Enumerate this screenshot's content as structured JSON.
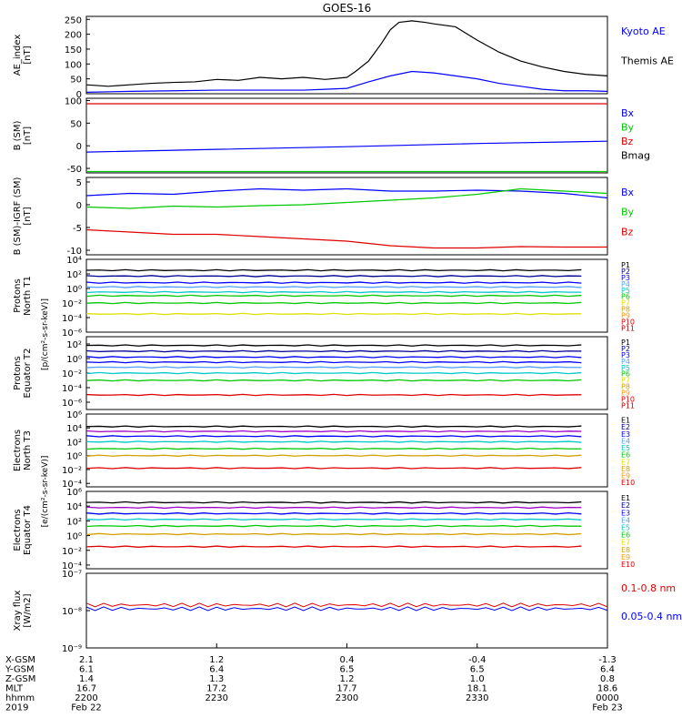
{
  "title": "GOES-16",
  "colors": {
    "black": "#000000",
    "blue": "#0000ff",
    "green": "#00c800",
    "red": "#e00000",
    "cyan": "#00c8c8",
    "orange": "#ff9600",
    "yellow": "#e0e000",
    "navy": "#000096",
    "purple": "#a000c8",
    "lightblue": "#50a0ff",
    "gold": "#d0a000",
    "maroon": "#b00000"
  },
  "time_axis": {
    "start": "2200",
    "end": "0000",
    "ticks": [
      "2200",
      "2230",
      "2300",
      "2330",
      "0000"
    ]
  },
  "chart_data": [
    {
      "type": "line",
      "panel": "ae_index",
      "ylabel": [
        "AE_index",
        "[nT]"
      ],
      "yticks": [
        "0",
        "50",
        "100",
        "150",
        "200",
        "250"
      ],
      "ylim": [
        0,
        260
      ],
      "legend": [
        "Kyoto AE",
        "Themis AE"
      ],
      "series": [
        {
          "name": "Themis AE",
          "color": "#000000",
          "x": [
            0,
            5,
            10,
            15,
            20,
            25,
            30,
            35,
            40,
            45,
            50,
            55,
            60,
            62,
            65,
            68,
            70,
            72,
            75,
            78,
            80,
            85,
            90,
            95,
            100,
            105,
            110,
            115,
            120
          ],
          "y": [
            30,
            25,
            30,
            35,
            38,
            40,
            48,
            45,
            55,
            50,
            55,
            48,
            55,
            75,
            110,
            170,
            215,
            240,
            245,
            240,
            235,
            225,
            180,
            140,
            110,
            90,
            75,
            65,
            60
          ]
        },
        {
          "name": "Kyoto AE",
          "color": "#0000ff",
          "x": [
            0,
            10,
            20,
            30,
            40,
            50,
            55,
            60,
            65,
            70,
            75,
            80,
            85,
            90,
            95,
            100,
            105,
            110,
            115,
            120
          ],
          "y": [
            5,
            8,
            10,
            12,
            12,
            12,
            15,
            18,
            40,
            60,
            75,
            70,
            60,
            50,
            35,
            25,
            15,
            10,
            10,
            8
          ]
        }
      ]
    },
    {
      "type": "line",
      "panel": "b_sm",
      "ylabel": [
        "B (SM)",
        "[nT]"
      ],
      "yticks": [
        "-50",
        "0",
        "50",
        "100"
      ],
      "ylim": [
        -60,
        105
      ],
      "legend": [
        "Bx",
        "By",
        "Bz",
        "Bmag"
      ],
      "series": [
        {
          "name": "Bz",
          "color": "#e00000",
          "x": [
            0,
            120
          ],
          "y": [
            93,
            93
          ]
        },
        {
          "name": "Bx",
          "color": "#0000ff",
          "x": [
            0,
            30,
            60,
            90,
            120
          ],
          "y": [
            -14,
            -8,
            -2,
            5,
            10
          ]
        },
        {
          "name": "By",
          "color": "#00c800",
          "x": [
            0,
            120
          ],
          "y": [
            -57,
            -57
          ]
        }
      ]
    },
    {
      "type": "line",
      "panel": "b_minus_igrf",
      "ylabel": [
        "B (SM)-IGRF (SM)",
        "[nT]"
      ],
      "yticks": [
        "-10",
        "-5",
        "0",
        "5"
      ],
      "ylim": [
        -11,
        6
      ],
      "legend": [
        "Bx",
        "By",
        "Bz"
      ],
      "series": [
        {
          "name": "Bx",
          "color": "#0000ff",
          "x": [
            0,
            10,
            20,
            30,
            40,
            50,
            60,
            70,
            80,
            90,
            100,
            110,
            120
          ],
          "y": [
            2.0,
            2.5,
            2.3,
            3.0,
            3.5,
            3.2,
            3.5,
            3.0,
            3.0,
            3.2,
            3.0,
            2.5,
            1.5
          ]
        },
        {
          "name": "By",
          "color": "#00c800",
          "x": [
            0,
            10,
            20,
            30,
            40,
            50,
            60,
            70,
            80,
            90,
            100,
            110,
            120
          ],
          "y": [
            -0.5,
            -0.8,
            -0.3,
            -0.5,
            -0.2,
            0.0,
            0.5,
            1.0,
            1.5,
            2.3,
            3.5,
            3.0,
            2.5
          ]
        },
        {
          "name": "Bz",
          "color": "#e00000",
          "x": [
            0,
            10,
            20,
            30,
            40,
            50,
            60,
            70,
            80,
            90,
            100,
            110,
            120
          ],
          "y": [
            -5.5,
            -6.0,
            -6.5,
            -6.5,
            -7.0,
            -7.5,
            -8.0,
            -9.0,
            -9.5,
            -9.5,
            -9.2,
            -9.3,
            -9.3
          ]
        }
      ]
    },
    {
      "type": "line",
      "panel": "protons_t1",
      "ylabel": [
        "Protons",
        "North T1"
      ],
      "yticks": [
        "10⁴",
        "10²",
        "10⁰",
        "10⁻²",
        "10⁻⁴",
        "10⁻⁶"
      ],
      "ylim": [
        -6,
        4
      ],
      "log": true,
      "legend": [
        "P1",
        "P2",
        "P3",
        "P4",
        "P5",
        "P6",
        "P7",
        "P8",
        "P9",
        "P10",
        "P11"
      ],
      "levels": [
        2.5,
        1.7,
        0.8,
        0.2,
        -0.5,
        -1.0,
        -2.0,
        -3.5
      ],
      "level_colors": [
        "#000000",
        "#000096",
        "#0000ff",
        "#50a0ff",
        "#00c8c8",
        "#00c800",
        "#00c800",
        "#e0e000"
      ]
    },
    {
      "type": "line",
      "panel": "protons_t2",
      "ylabel": [
        "Protons",
        "Equator T2"
      ],
      "yticks": [
        "10²",
        "10⁰",
        "10⁻²",
        "10⁻⁴",
        "10⁻⁶"
      ],
      "ylim": [
        -7,
        3
      ],
      "log": true,
      "legend": [
        "P1",
        "P2",
        "P3",
        "P4",
        "P5",
        "P6",
        "P7",
        "P8",
        "P9",
        "P10",
        "P11"
      ],
      "levels": [
        1.8,
        1.0,
        0.2,
        -0.5,
        -1.2,
        -2.0,
        -3.0,
        -5.0
      ],
      "level_colors": [
        "#000000",
        "#000096",
        "#0000ff",
        "#0000ff",
        "#50a0ff",
        "#00c8c8",
        "#00c800",
        "#e00000"
      ]
    },
    {
      "type": "line",
      "panel": "electrons_t3",
      "ylabel": [
        "Electrons",
        "North T3"
      ],
      "yticks": [
        "10⁶",
        "10⁴",
        "10²",
        "10⁰",
        "10⁻²",
        "10⁻⁴"
      ],
      "ylim": [
        -4.5,
        6
      ],
      "log": true,
      "legend": [
        "E1",
        "E2",
        "E3",
        "E4",
        "E5",
        "E6",
        "E7",
        "E8",
        "E9",
        "E10"
      ],
      "levels": [
        4.2,
        3.5,
        2.8,
        2.0,
        1.0,
        0.0,
        -1.8
      ],
      "level_colors": [
        "#000000",
        "#a000c8",
        "#0000ff",
        "#00c8c8",
        "#00c800",
        "#d0a000",
        "#e00000"
      ]
    },
    {
      "type": "line",
      "panel": "electrons_t4",
      "ylabel": [
        "Electrons",
        "Equator T4"
      ],
      "yticks": [
        "10⁶",
        "10⁴",
        "10²",
        "10⁰",
        "10⁻²",
        "10⁻⁴"
      ],
      "ylim": [
        -4.5,
        6
      ],
      "log": true,
      "legend": [
        "E1",
        "E2",
        "E3",
        "E4",
        "E5",
        "E6",
        "E7",
        "E8",
        "E9",
        "E10"
      ],
      "levels": [
        4.5,
        3.8,
        3.0,
        2.2,
        1.3,
        0.2,
        -1.5
      ],
      "level_colors": [
        "#000000",
        "#a000c8",
        "#0000ff",
        "#00c8c8",
        "#00c800",
        "#d0a000",
        "#e00000"
      ]
    },
    {
      "type": "line",
      "panel": "xray",
      "ylabel": [
        "Xray flux",
        "[W/m2]"
      ],
      "yticks": [
        "10⁻⁷",
        "10⁻⁸",
        "10⁻⁹"
      ],
      "ylim": [
        -9,
        -7
      ],
      "log": true,
      "legend": [
        "0.1-0.8 nm",
        "0.05-0.4 nm"
      ],
      "series": [
        {
          "name": "0.1-0.8 nm",
          "color": "#e00000",
          "level": -7.85
        },
        {
          "name": "0.05-0.4 nm",
          "color": "#0000ff",
          "level": -7.95
        }
      ]
    }
  ],
  "units_labels": {
    "protons": "[p/(cm²-s-sr-keV)]",
    "electrons": "[e/(cm²-s-sr-keV)]"
  },
  "footer": {
    "rows": [
      {
        "label": "X-GSM",
        "values": [
          "2.1",
          "1.2",
          "0.4",
          "-0.4",
          "-1.3"
        ]
      },
      {
        "label": "Y-GSM",
        "values": [
          "6.1",
          "6.4",
          "6.5",
          "6.5",
          "6.4"
        ]
      },
      {
        "label": "Z-GSM",
        "values": [
          "1.4",
          "1.3",
          "1.2",
          "1.0",
          "0.8"
        ]
      },
      {
        "label": "MLT",
        "values": [
          "16.7",
          "17.2",
          "17.7",
          "18.1",
          "18.6"
        ]
      },
      {
        "label": "hhmm",
        "values": [
          "2200",
          "2230",
          "2300",
          "2330",
          "0000"
        ]
      },
      {
        "label": "2019",
        "values": [
          "Feb 22",
          "",
          "",
          "",
          "Feb 23"
        ]
      }
    ]
  }
}
